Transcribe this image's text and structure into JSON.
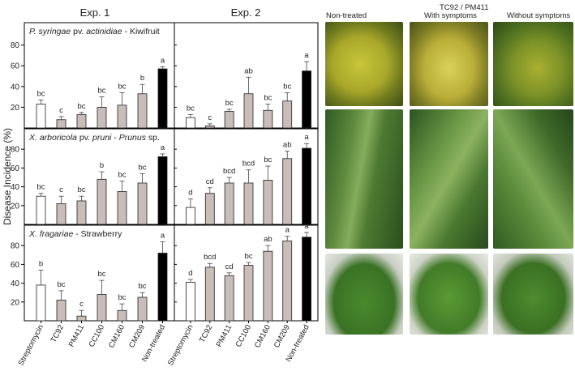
{
  "y_axis_label": "Disease Incidence (%)",
  "experiments": [
    "Exp. 1",
    "Exp. 2"
  ],
  "treatments": [
    "Streptomycin",
    "TC92",
    "PM411",
    "CC100",
    "CM160",
    "CM209",
    "Non-treated"
  ],
  "bar_colors": {
    "Streptomycin": "#ffffff",
    "strains": "#c8bdb8",
    "Non-treated": "#000000"
  },
  "photos": {
    "group_label": "TC92 / PM411",
    "columns": [
      "Non-treated",
      "With symptoms",
      "Without symptoms"
    ]
  },
  "chart_data": [
    {
      "type": "bar",
      "panel_title": {
        "italic": "P. syringae",
        "plain": " pv. ",
        "italic2": "actinidiae",
        "rest": " - Kiwifruit"
      },
      "ylim": [
        0,
        100
      ],
      "yticks": [
        20,
        40,
        60,
        80
      ],
      "exp1": {
        "values": [
          23,
          8,
          13,
          20,
          22,
          33,
          57
        ],
        "errors": [
          4,
          3,
          2,
          10,
          12,
          9,
          2
        ],
        "letters": [
          "bc",
          "c",
          "bc",
          "bc",
          "bc",
          "b",
          "a"
        ]
      },
      "exp2": {
        "values": [
          10,
          2,
          16,
          33,
          17,
          26,
          55
        ],
        "errors": [
          3,
          2,
          2,
          16,
          6,
          8,
          9
        ],
        "letters": [
          "bc",
          "c",
          "bc",
          "ab",
          "bc",
          "bc",
          "a"
        ]
      }
    },
    {
      "type": "bar",
      "panel_title": {
        "italic": "X. arboricola",
        "plain": " pv. ",
        "italic2": "pruni",
        "rest": " - ",
        "italic3": "Prunus",
        "rest2": " sp."
      },
      "ylim": [
        0,
        100
      ],
      "yticks": [
        20,
        40,
        60,
        80
      ],
      "exp1": {
        "values": [
          30,
          22,
          25,
          48,
          35,
          44,
          72
        ],
        "errors": [
          3,
          8,
          5,
          8,
          11,
          10,
          3
        ],
        "letters": [
          "bc",
          "c",
          "bc",
          "b",
          "bc",
          "bc",
          "a"
        ]
      },
      "exp2": {
        "values": [
          18,
          33,
          44,
          44,
          47,
          70,
          81
        ],
        "errors": [
          9,
          6,
          6,
          14,
          15,
          8,
          5
        ],
        "letters": [
          "d",
          "cd",
          "bcd",
          "bcd",
          "bc",
          "ab",
          "a"
        ]
      }
    },
    {
      "type": "bar",
      "panel_title": {
        "italic": "X. fragariae",
        "rest": " - Strawberry"
      },
      "ylim": [
        0,
        100
      ],
      "yticks": [
        20,
        40,
        60,
        80
      ],
      "exp1": {
        "values": [
          38,
          22,
          5,
          28,
          11,
          25,
          72
        ],
        "errors": [
          16,
          10,
          6,
          15,
          7,
          5,
          12
        ],
        "letters": [
          "b",
          "bc",
          "c",
          "bc",
          "bc",
          "bc",
          "a"
        ]
      },
      "exp2": {
        "values": [
          41,
          57,
          48,
          59,
          74,
          85,
          89
        ],
        "errors": [
          3,
          4,
          3,
          3,
          6,
          5,
          5
        ],
        "letters": [
          "d",
          "bcd",
          "cd",
          "bc",
          "ab",
          "a",
          "a"
        ]
      }
    }
  ]
}
